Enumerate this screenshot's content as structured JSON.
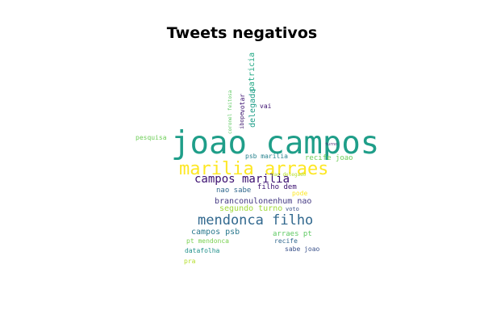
{
  "title": "Tweets negativos",
  "words": [
    {
      "text": "joao campos",
      "color": "#1f9e89"
    },
    {
      "text": "marilia arraes",
      "color": "#fde725"
    },
    {
      "text": "campos marilia",
      "color": "#3b0f70"
    },
    {
      "text": "mendonca filho",
      "color": "#31688e"
    },
    {
      "text": "branconulonenhum nao",
      "color": "#443983"
    },
    {
      "text": "segundo turno",
      "color": "#a0da39"
    },
    {
      "text": "psb marilia",
      "color": "#26828e"
    },
    {
      "text": "nao sabe",
      "color": "#31688e"
    },
    {
      "text": "filho dem",
      "color": "#3b0f70"
    },
    {
      "text": "recife joao",
      "color": "#6ece58"
    },
    {
      "text": "campos psb",
      "color": "#2a788e"
    },
    {
      "text": "arraes pt",
      "color": "#5ec962"
    },
    {
      "text": "pt mendonca",
      "color": "#7ad151"
    },
    {
      "text": "datafolha",
      "color": "#21918c"
    },
    {
      "text": "recife",
      "color": "#31688e"
    },
    {
      "text": "sabe joao",
      "color": "#3b528b"
    },
    {
      "text": "pesquisa",
      "color": "#6ece58"
    },
    {
      "text": "delegada",
      "color": "#1f9e89"
    },
    {
      "text": "patricia",
      "color": "#22a884"
    },
    {
      "text": "vai",
      "color": "#3b0f70"
    },
    {
      "text": "votar",
      "color": "#3b0f70"
    },
    {
      "text": "ibope",
      "color": "#482475"
    },
    {
      "text": "coronel feitosa",
      "color": "#5ec962"
    },
    {
      "text": "pode",
      "color": "#fde725"
    },
    {
      "text": "voto",
      "color": "#3b528b"
    },
    {
      "text": "pra",
      "color": "#b5de2b"
    },
    {
      "text": "turno",
      "color": "#482475"
    },
    {
      "text": "sao delegado",
      "color": "#b5de2b"
    }
  ]
}
